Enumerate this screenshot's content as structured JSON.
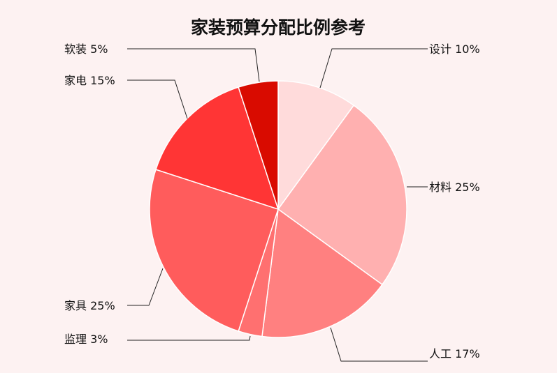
{
  "chart_data": {
    "type": "pie",
    "title": "家装预算分配比例参考",
    "slices": [
      {
        "label": "设计",
        "value": 10,
        "text": "设计 10%",
        "color": "#ffdbdb"
      },
      {
        "label": "材料",
        "value": 25,
        "text": "材料 25%",
        "color": "#ffb0b0"
      },
      {
        "label": "人工",
        "value": 17,
        "text": "人工 17%",
        "color": "#ff8080"
      },
      {
        "label": "监理",
        "value": 3,
        "text": "监理 3%",
        "color": "#ff7070"
      },
      {
        "label": "家具",
        "value": 25,
        "text": "家具 25%",
        "color": "#ff5c5c"
      },
      {
        "label": "家电",
        "value": 15,
        "text": "家电 15%",
        "color": "#ff3535"
      },
      {
        "label": "软装",
        "value": 5,
        "text": "软装 5%",
        "color": "#d90b00"
      }
    ],
    "start": "top",
    "direction": "clockwise",
    "legend": "none"
  }
}
